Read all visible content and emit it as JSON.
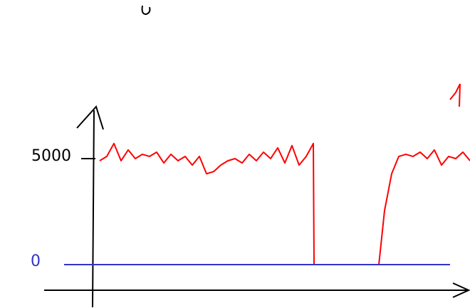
{
  "chart_data": {
    "type": "line",
    "x_ticks_none": null,
    "xlim": [
      0,
      570
    ],
    "ylim": [
      -1200,
      7300
    ],
    "yticks": [
      5000,
      0
    ],
    "series": [
      {
        "color": "#ff0000",
        "x": [
          50,
          60,
          70,
          80,
          90,
          100,
          110,
          120,
          130,
          140,
          150,
          160,
          170,
          180,
          190,
          200,
          210,
          220,
          230,
          240,
          250,
          260,
          270,
          280,
          290,
          300,
          310,
          320,
          330,
          340,
          350,
          351,
          400,
          442,
          450,
          460,
          470,
          480,
          490,
          500,
          510,
          520,
          530,
          540,
          550,
          560,
          570
        ],
        "values": [
          4800,
          5000,
          5600,
          4800,
          5300,
          4900,
          5100,
          5000,
          5200,
          4700,
          5100,
          4800,
          5000,
          4600,
          5000,
          4200,
          4300,
          4600,
          4800,
          4900,
          4700,
          5100,
          4800,
          5200,
          4900,
          5400,
          4700,
          5500,
          4600,
          5000,
          5600,
          0,
          null,
          0,
          2500,
          4200,
          5000,
          5100,
          5000,
          5200,
          4900,
          5300,
          4600,
          5000,
          4900,
          5200,
          4800
        ]
      },
      {
        "color": "#3333cc",
        "x": [
          0,
          542
        ],
        "values": [
          0,
          0
        ]
      }
    ]
  }
}
